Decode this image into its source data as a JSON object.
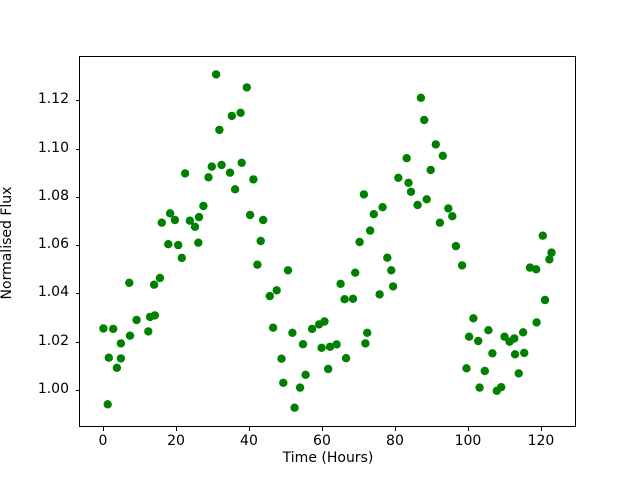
{
  "chart_data": {
    "type": "scatter",
    "title": "",
    "xlabel": "Time (Hours)",
    "ylabel": "Normalised Flux",
    "grid": false,
    "legend": null,
    "marker": {
      "shape": "circle",
      "color": "#008000",
      "radius_px": 4.2
    },
    "xlim": [
      -6.3,
      129.6
    ],
    "ylim": [
      0.9847,
      1.1379
    ],
    "xticks": [
      0,
      20,
      40,
      60,
      80,
      100,
      120
    ],
    "xtick_labels": [
      "0",
      "20",
      "40",
      "60",
      "80",
      "100",
      "120"
    ],
    "yticks": [
      1.0,
      1.02,
      1.04,
      1.06,
      1.08,
      1.1,
      1.12
    ],
    "ytick_labels": [
      "1.00",
      "1.02",
      "1.04",
      "1.06",
      "1.08",
      "1.10",
      "1.12"
    ],
    "points": [
      [
        0.1,
        1.0255
      ],
      [
        1.3,
        0.9941
      ],
      [
        1.6,
        1.0134
      ],
      [
        2.8,
        1.0253
      ],
      [
        3.8,
        1.0092
      ],
      [
        4.9,
        1.0193
      ],
      [
        4.9,
        1.0131
      ],
      [
        7.2,
        1.0444
      ],
      [
        7.4,
        1.0225
      ],
      [
        9.2,
        1.029
      ],
      [
        12.4,
        1.0243
      ],
      [
        12.9,
        1.0303
      ],
      [
        14.0,
        1.0436
      ],
      [
        14.2,
        1.0309
      ],
      [
        15.6,
        1.0464
      ],
      [
        16.1,
        1.0693
      ],
      [
        17.9,
        1.0604
      ],
      [
        18.4,
        1.0732
      ],
      [
        19.7,
        1.0704
      ],
      [
        20.6,
        1.06
      ],
      [
        21.6,
        1.0547
      ],
      [
        22.5,
        1.0897
      ],
      [
        23.8,
        1.0701
      ],
      [
        25.2,
        1.0676
      ],
      [
        26.1,
        1.061
      ],
      [
        26.3,
        1.0716
      ],
      [
        27.5,
        1.0762
      ],
      [
        28.9,
        1.0881
      ],
      [
        29.8,
        1.0925
      ],
      [
        31.0,
        1.1307
      ],
      [
        31.9,
        1.1077
      ],
      [
        32.5,
        1.0932
      ],
      [
        34.8,
        1.09
      ],
      [
        35.3,
        1.1135
      ],
      [
        36.2,
        1.0831
      ],
      [
        37.7,
        1.1148
      ],
      [
        38.0,
        1.0941
      ],
      [
        39.4,
        1.1253
      ],
      [
        40.3,
        1.0725
      ],
      [
        41.2,
        1.0872
      ],
      [
        43.2,
        1.0617
      ],
      [
        43.9,
        1.0704
      ],
      [
        42.3,
        1.0519
      ],
      [
        45.7,
        1.0389
      ],
      [
        46.6,
        1.0258
      ],
      [
        47.6,
        1.0413
      ],
      [
        48.9,
        1.013
      ],
      [
        49.4,
        1.003
      ],
      [
        50.7,
        1.0496
      ],
      [
        51.9,
        1.0237
      ],
      [
        52.5,
        0.9927
      ],
      [
        54.0,
        1.001
      ],
      [
        54.8,
        1.019
      ],
      [
        55.5,
        1.0063
      ],
      [
        57.3,
        1.0253
      ],
      [
        59.2,
        1.0272
      ],
      [
        59.9,
        1.0175
      ],
      [
        60.7,
        1.0284
      ],
      [
        61.7,
        1.0087
      ],
      [
        62.2,
        1.0179
      ],
      [
        64.0,
        1.0189
      ],
      [
        65.1,
        1.044
      ],
      [
        66.2,
        1.0376
      ],
      [
        66.6,
        1.0132
      ],
      [
        68.5,
        1.0378
      ],
      [
        69.1,
        1.0486
      ],
      [
        70.3,
        1.0613
      ],
      [
        71.5,
        1.081
      ],
      [
        71.9,
        1.0193
      ],
      [
        72.4,
        1.0237
      ],
      [
        73.2,
        1.066
      ],
      [
        74.2,
        1.0728
      ],
      [
        75.8,
        1.0396
      ],
      [
        76.6,
        1.0757
      ],
      [
        77.9,
        1.0548
      ],
      [
        79.0,
        1.0496
      ],
      [
        79.5,
        1.0429
      ],
      [
        80.9,
        1.0879
      ],
      [
        83.2,
        1.096
      ],
      [
        83.7,
        1.0858
      ],
      [
        84.4,
        1.0821
      ],
      [
        86.2,
        1.0766
      ],
      [
        87.1,
        1.121
      ],
      [
        88.0,
        1.1118
      ],
      [
        88.7,
        1.079
      ],
      [
        89.8,
        1.0911
      ],
      [
        91.2,
        1.1017
      ],
      [
        92.3,
        1.0693
      ],
      [
        93.1,
        1.097
      ],
      [
        94.6,
        1.0752
      ],
      [
        95.7,
        1.072
      ],
      [
        96.7,
        1.0596
      ],
      [
        98.4,
        1.0516
      ],
      [
        99.6,
        1.009
      ],
      [
        100.3,
        1.0221
      ],
      [
        101.5,
        1.0297
      ],
      [
        102.8,
        1.0203
      ],
      [
        103.2,
        1.001
      ],
      [
        104.6,
        1.0079
      ],
      [
        105.6,
        1.0248
      ],
      [
        106.7,
        1.0152
      ],
      [
        107.9,
        0.9997
      ],
      [
        109.1,
        1.0012
      ],
      [
        110.0,
        1.0221
      ],
      [
        111.4,
        1.02
      ],
      [
        112.7,
        1.0214
      ],
      [
        112.9,
        1.0148
      ],
      [
        113.9,
        1.0069
      ],
      [
        115.1,
        1.0239
      ],
      [
        115.4,
        1.0154
      ],
      [
        117.0,
        1.0507
      ],
      [
        118.7,
        1.05
      ],
      [
        118.8,
        1.028
      ],
      [
        120.5,
        1.0639
      ],
      [
        121.1,
        1.0373
      ],
      [
        122.3,
        1.0541
      ],
      [
        122.9,
        1.0569
      ]
    ]
  }
}
